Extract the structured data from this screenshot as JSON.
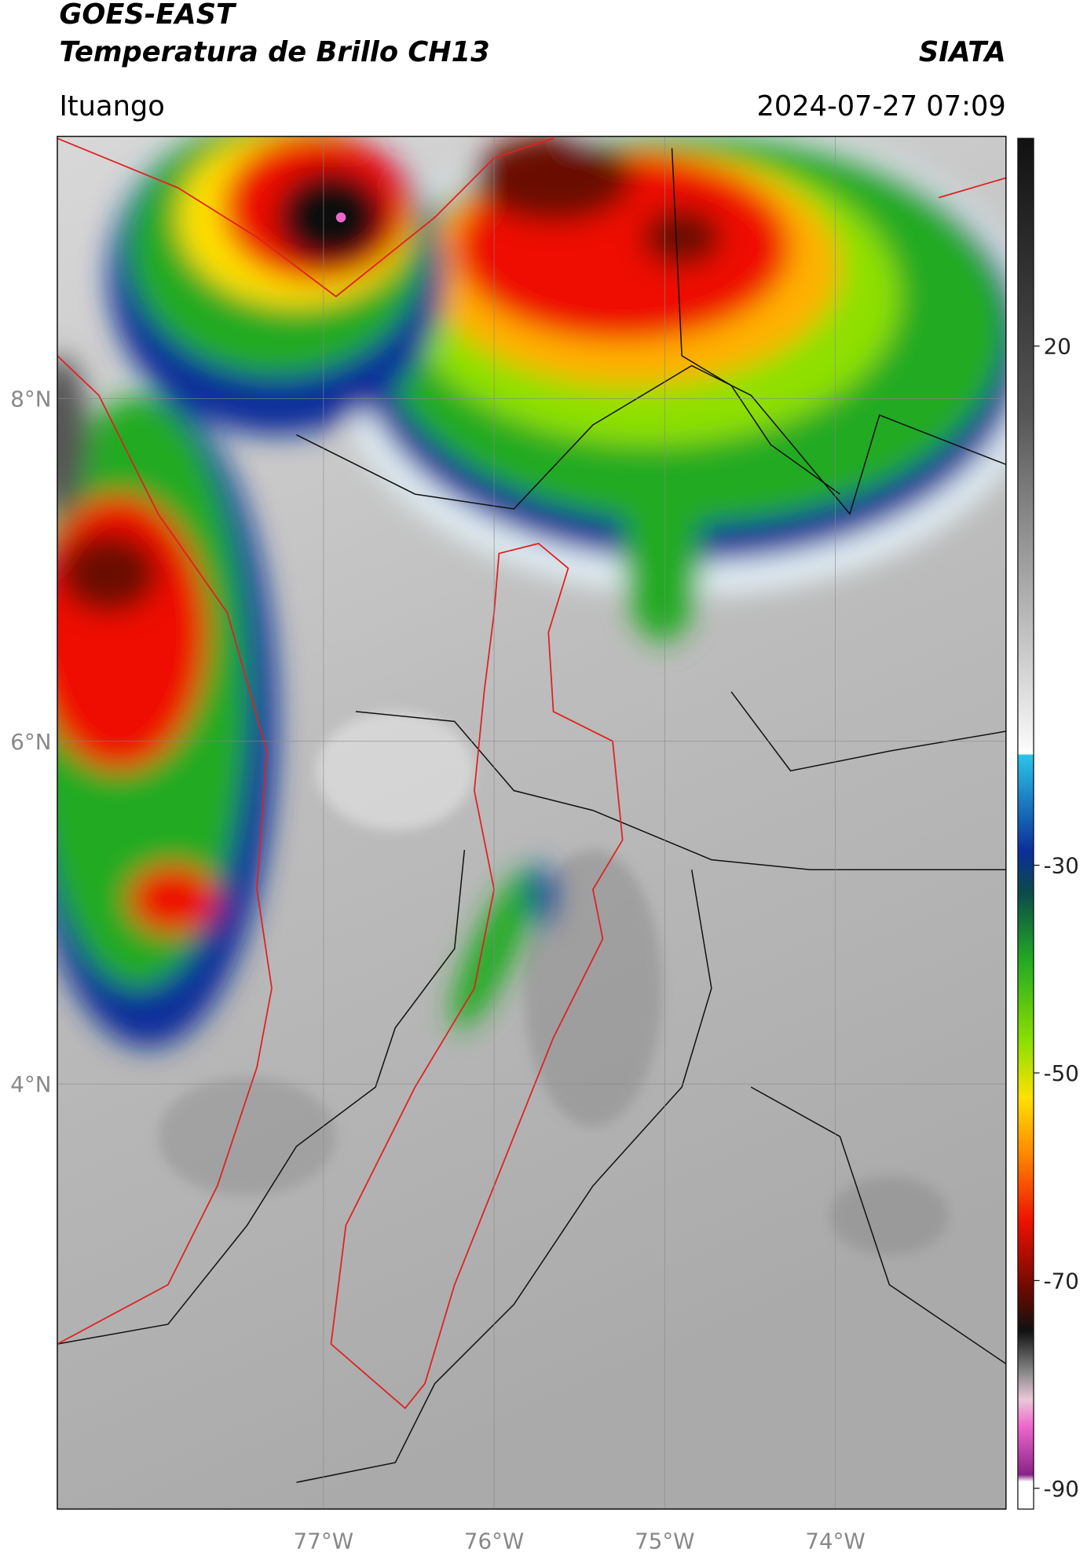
{
  "header": {
    "title": "GOES-EAST",
    "subtitle": "Temperatura de Brillo CH13",
    "brand": "SIATA",
    "region": "Ituango",
    "timestamp": "2024-07-27 07:09"
  },
  "map": {
    "xlim": [
      -78.56,
      -73.0
    ],
    "ylim": [
      1.52,
      9.53
    ],
    "xticks": [
      {
        "value": -77,
        "label": "77°W"
      },
      {
        "value": -76,
        "label": "76°W"
      },
      {
        "value": -75,
        "label": "75°W"
      },
      {
        "value": -74,
        "label": "74°W"
      }
    ],
    "yticks": [
      {
        "value": 8,
        "label": "8°N"
      },
      {
        "value": 6,
        "label": "6°N"
      },
      {
        "value": 4,
        "label": "4°N"
      }
    ],
    "grid": true
  },
  "colorbar": {
    "lim": [
      -92,
      40
    ],
    "ticks": [
      20,
      -30,
      -50,
      -70,
      -90
    ]
  }
}
